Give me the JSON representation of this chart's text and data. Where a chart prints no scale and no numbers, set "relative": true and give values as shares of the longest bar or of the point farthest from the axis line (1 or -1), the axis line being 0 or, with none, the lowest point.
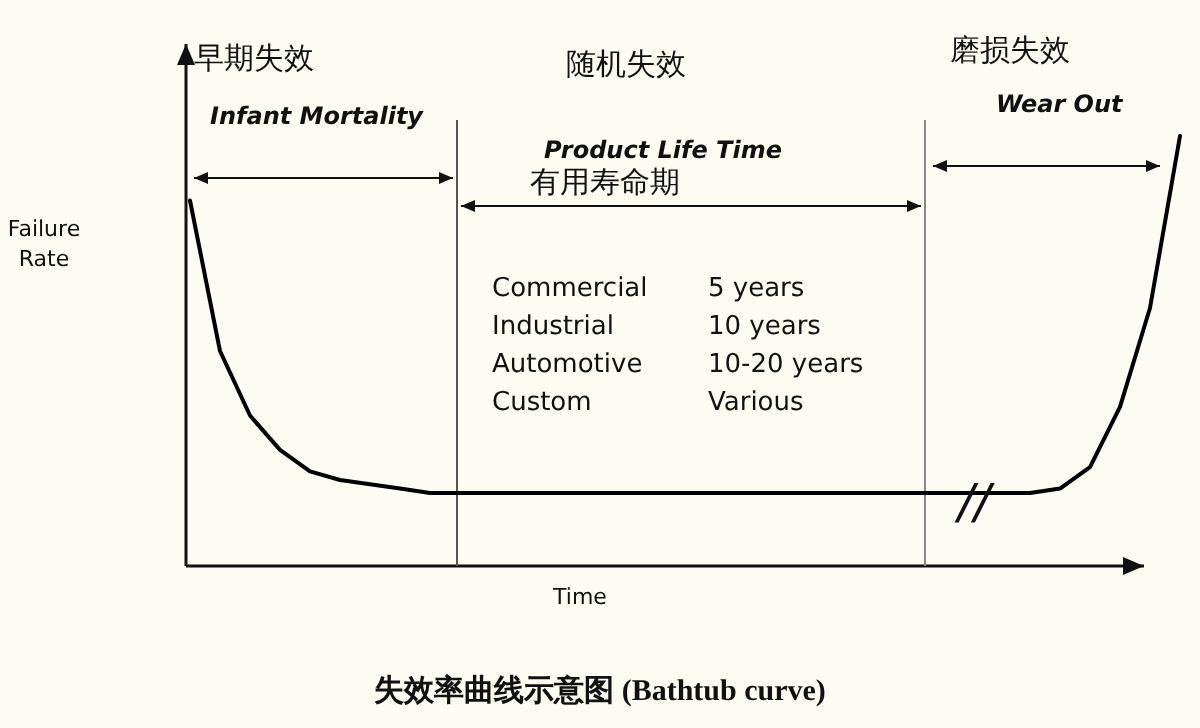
{
  "chart_data": {
    "type": "line",
    "relative": true,
    "title": "失效率曲线示意图 (Bathtub curve)",
    "xlabel": "Time",
    "ylabel": "Failure Rate",
    "categories": [
      null,
      null,
      null,
      null,
      null,
      null,
      null,
      null,
      null,
      null,
      null,
      null,
      null,
      null,
      null,
      null,
      null,
      null,
      null,
      null,
      null,
      null,
      null,
      null,
      null,
      null,
      null,
      null,
      null,
      null,
      null,
      null,
      null,
      null
    ],
    "series": [
      {
        "color": "#000000",
        "values": [
          0.85,
          0.5,
          0.35,
          0.27,
          0.22,
          0.2,
          0.19,
          0.18,
          0.17,
          0.17,
          0.17,
          0.17,
          0.17,
          0.17,
          0.17,
          0.17,
          0.17,
          0.17,
          0.17,
          0.17,
          0.17,
          0.17,
          0.17,
          0.17,
          0.17,
          0.17,
          0.17,
          0.17,
          0.17,
          0.18,
          0.23,
          0.37,
          0.6,
          1.0
        ]
      }
    ],
    "annotations": [
      "早期失效",
      "Infant Mortality",
      "随机失效",
      "Product Life Time",
      "有用寿命期",
      "磨损失效",
      "Wear Out",
      "Commercial",
      "5 years",
      "Industrial",
      "10 years",
      "Automotive",
      "10-20 years",
      "Custom",
      "Various",
      "//"
    ],
    "marker": "none",
    "line_style": "solid"
  }
}
